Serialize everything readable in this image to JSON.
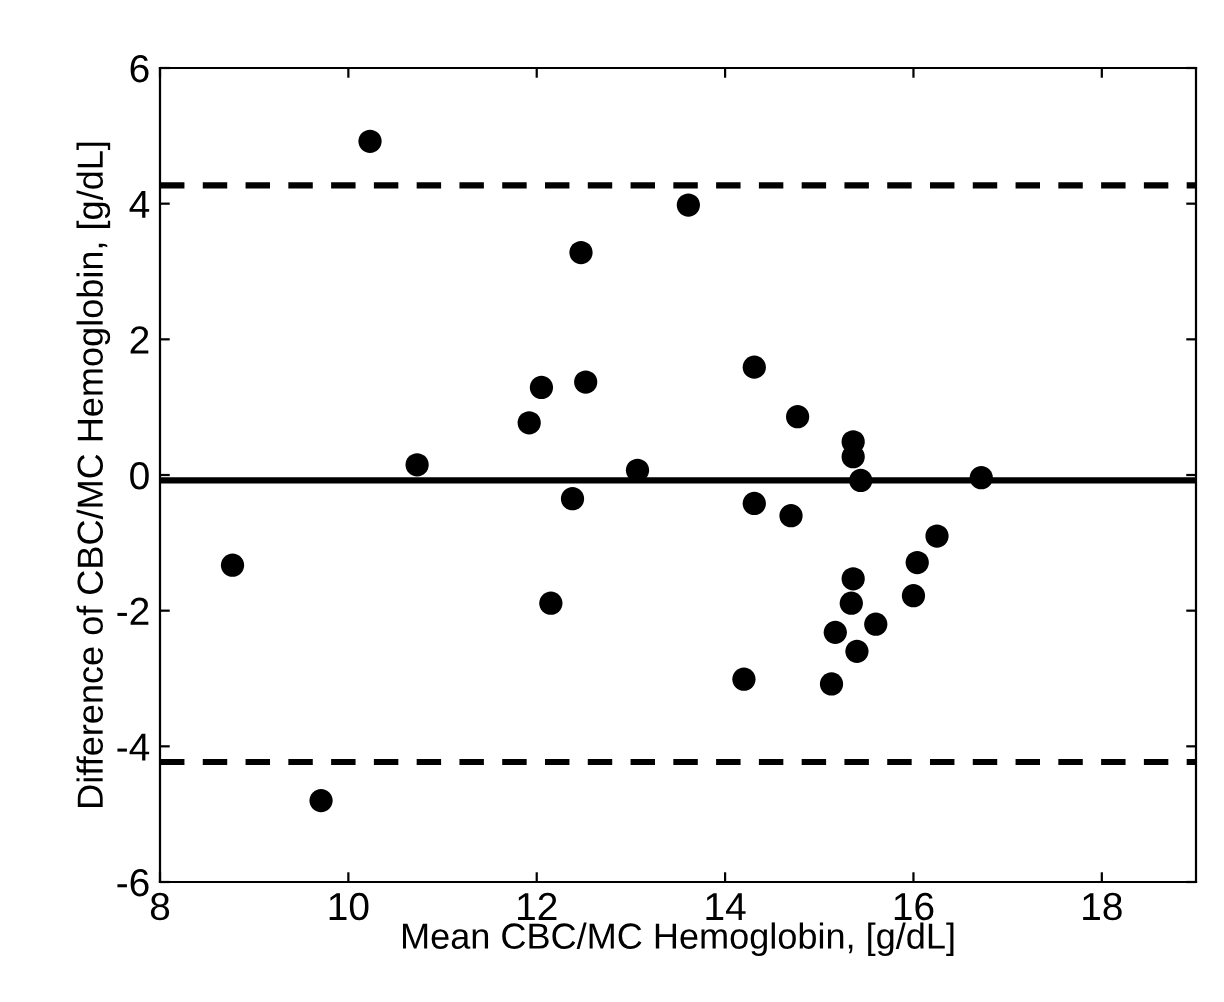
{
  "chart_data": {
    "type": "scatter",
    "xlabel": "Mean CBC/MC Hemoglobin, [g/dL]",
    "ylabel": "Difference of CBC/MC Hemoglobin, [g/dL]",
    "x": [
      8.77,
      9.71,
      10.23,
      10.73,
      11.92,
      12.05,
      12.15,
      12.38,
      12.47,
      12.52,
      13.07,
      13.61,
      14.31,
      14.77,
      15.36,
      15.36,
      15.44,
      16.72,
      14.31,
      14.7,
      16.25,
      16.04,
      15.36,
      15.34,
      16.0,
      15.6,
      15.17,
      15.4,
      14.2,
      15.13
    ],
    "values": [
      -1.33,
      -4.8,
      4.92,
      0.15,
      0.77,
      1.29,
      -1.89,
      -0.35,
      3.28,
      1.37,
      0.07,
      3.98,
      1.59,
      0.86,
      0.49,
      0.27,
      -0.08,
      -0.04,
      -0.42,
      -0.6,
      -0.9,
      -1.29,
      -1.53,
      -1.89,
      -1.78,
      -2.2,
      -2.32,
      -2.6,
      -3.01,
      -3.08
    ],
    "color": "#000000",
    "marker": "circle",
    "ref_lines": [
      {
        "axis": "y",
        "value": 4.27,
        "line_style": "dashed",
        "color": "#000000"
      },
      {
        "axis": "y",
        "value": -0.08,
        "line_style": "solid",
        "color": "#000000"
      },
      {
        "axis": "y",
        "value": -4.23,
        "line_style": "dashed",
        "color": "#000000"
      }
    ],
    "xlim": [
      8,
      19
    ],
    "xticks": [
      8,
      10,
      12,
      14,
      16,
      18
    ],
    "ylim": [
      -6,
      6
    ],
    "yticks": [
      -6,
      -4,
      -2,
      0,
      2,
      4,
      6
    ],
    "grid": false,
    "legend": false
  }
}
